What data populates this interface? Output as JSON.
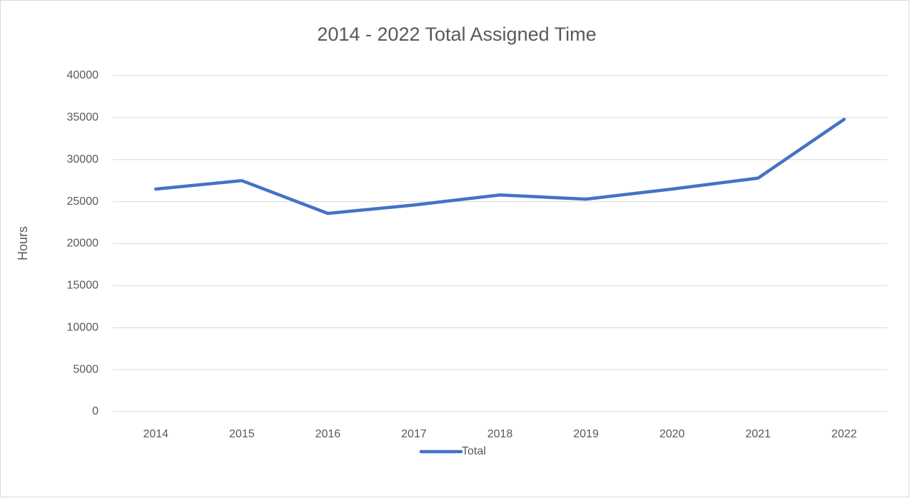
{
  "chart_data": {
    "type": "line",
    "title": "2014 - 2022 Total Assigned Time",
    "ylabel": "Hours",
    "categories": [
      "2014",
      "2015",
      "2016",
      "2017",
      "2018",
      "2019",
      "2020",
      "2021",
      "2022"
    ],
    "series": [
      {
        "name": "Total",
        "color": "#4472c4",
        "values": [
          26500,
          27500,
          23600,
          24600,
          25800,
          25300,
          26500,
          27800,
          34800
        ]
      }
    ],
    "ylim": [
      0,
      40000
    ],
    "yticks": [
      0,
      5000,
      10000,
      15000,
      20000,
      25000,
      30000,
      35000,
      40000
    ],
    "grid": true,
    "legend": "bottom"
  }
}
